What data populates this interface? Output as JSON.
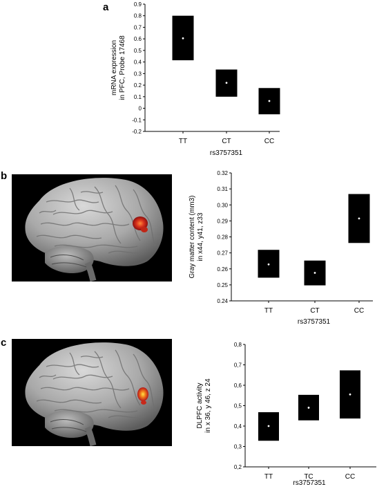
{
  "panel_letters": [
    "a",
    "b",
    "c"
  ],
  "chart_data": [
    {
      "type": "box",
      "panel": "a",
      "categories": [
        "TT",
        "CT",
        "CC"
      ],
      "boxes": [
        {
          "mean": 0.605,
          "low": 0.415,
          "high": 0.8
        },
        {
          "mean": 0.22,
          "low": 0.1,
          "high": 0.335
        },
        {
          "mean": 0.063,
          "low": -0.052,
          "high": 0.175
        }
      ],
      "ylabel_lines": [
        "mRNA expression",
        "in PFC, Probe 17468"
      ],
      "xlabel": "rs3757351",
      "yticks": [
        "0.9",
        "0.8",
        "0.7",
        "0.6",
        "0.5",
        "0.4",
        "0.3",
        "0.2",
        "0.1",
        "0",
        "-0.1",
        "-0.2"
      ],
      "ylim": [
        -0.2,
        0.9
      ]
    },
    {
      "type": "box",
      "panel": "b",
      "categories": [
        "TT",
        "CT",
        "CC"
      ],
      "boxes": [
        {
          "mean": 0.2628,
          "low": 0.2545,
          "high": 0.2719
        },
        {
          "mean": 0.2575,
          "low": 0.2497,
          "high": 0.2652
        },
        {
          "mean": 0.2915,
          "low": 0.2762,
          "high": 0.3068
        }
      ],
      "ylabel_lines": [
        "Gray matter content (mm3)",
        "in x44, y41, z33"
      ],
      "xlabel": "rs3757351",
      "yticks": [
        "0.32",
        "0.31",
        "0.30",
        "0.29",
        "0.28",
        "0.27",
        "0.26",
        "0.25",
        "0.24"
      ],
      "ylim": [
        0.24,
        0.32
      ]
    },
    {
      "type": "box",
      "panel": "c",
      "categories": [
        "TT",
        "TC",
        "CC"
      ],
      "boxes": [
        {
          "mean": 0.4,
          "low": 0.328,
          "high": 0.468
        },
        {
          "mean": 0.49,
          "low": 0.428,
          "high": 0.553
        },
        {
          "mean": 0.555,
          "low": 0.437,
          "high": 0.673
        }
      ],
      "ylabel_lines": [
        "DLPFC activity",
        "in x 36, y 46, z 24"
      ],
      "xlabel": "rs3757351",
      "yticks": [
        "0,8",
        "0,7",
        "0,6",
        "0,5",
        "0,4",
        "0,3",
        "0,2"
      ],
      "ylim": [
        0.2,
        0.8
      ]
    }
  ],
  "colors": {
    "box": "#000000",
    "mean_dot": "#ffffff",
    "brain_bg": "#000000",
    "activation": "#e8401a"
  }
}
